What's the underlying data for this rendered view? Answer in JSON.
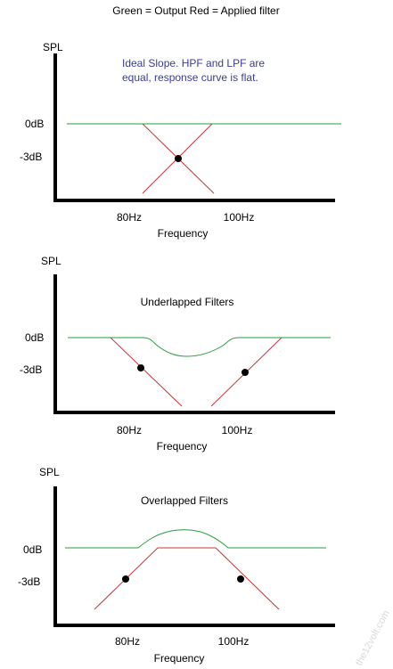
{
  "header": "Green = Output  Red = Applied filter",
  "colors": {
    "output": "#2a9d3c",
    "filter": "#cc3333",
    "axis": "#000000",
    "note": "#3a3aa0",
    "watermark": "#d8d8d8"
  },
  "panels": [
    {
      "y_axis_label": "SPL",
      "level_0": "0dB",
      "level_3": "-3dB",
      "tick_80": "80Hz",
      "tick_100": "100Hz",
      "x_axis_label": "Frequency",
      "note_lines": [
        "Ideal Slope.  HPF and LPF are",
        "equal, response curve is flat."
      ]
    },
    {
      "y_axis_label": "SPL",
      "title": "Underlapped Filters",
      "level_0": "0dB",
      "level_3": "-3dB",
      "tick_80": "80Hz",
      "tick_100": "100Hz",
      "x_axis_label": "Frequency"
    },
    {
      "y_axis_label": "SPL",
      "title": "Overlapped Filters",
      "level_0": "0dB",
      "level_3": "-3dB",
      "tick_80": "80Hz",
      "tick_100": "100Hz",
      "x_axis_label": "Frequency"
    }
  ],
  "watermark": "the12volt.com"
}
